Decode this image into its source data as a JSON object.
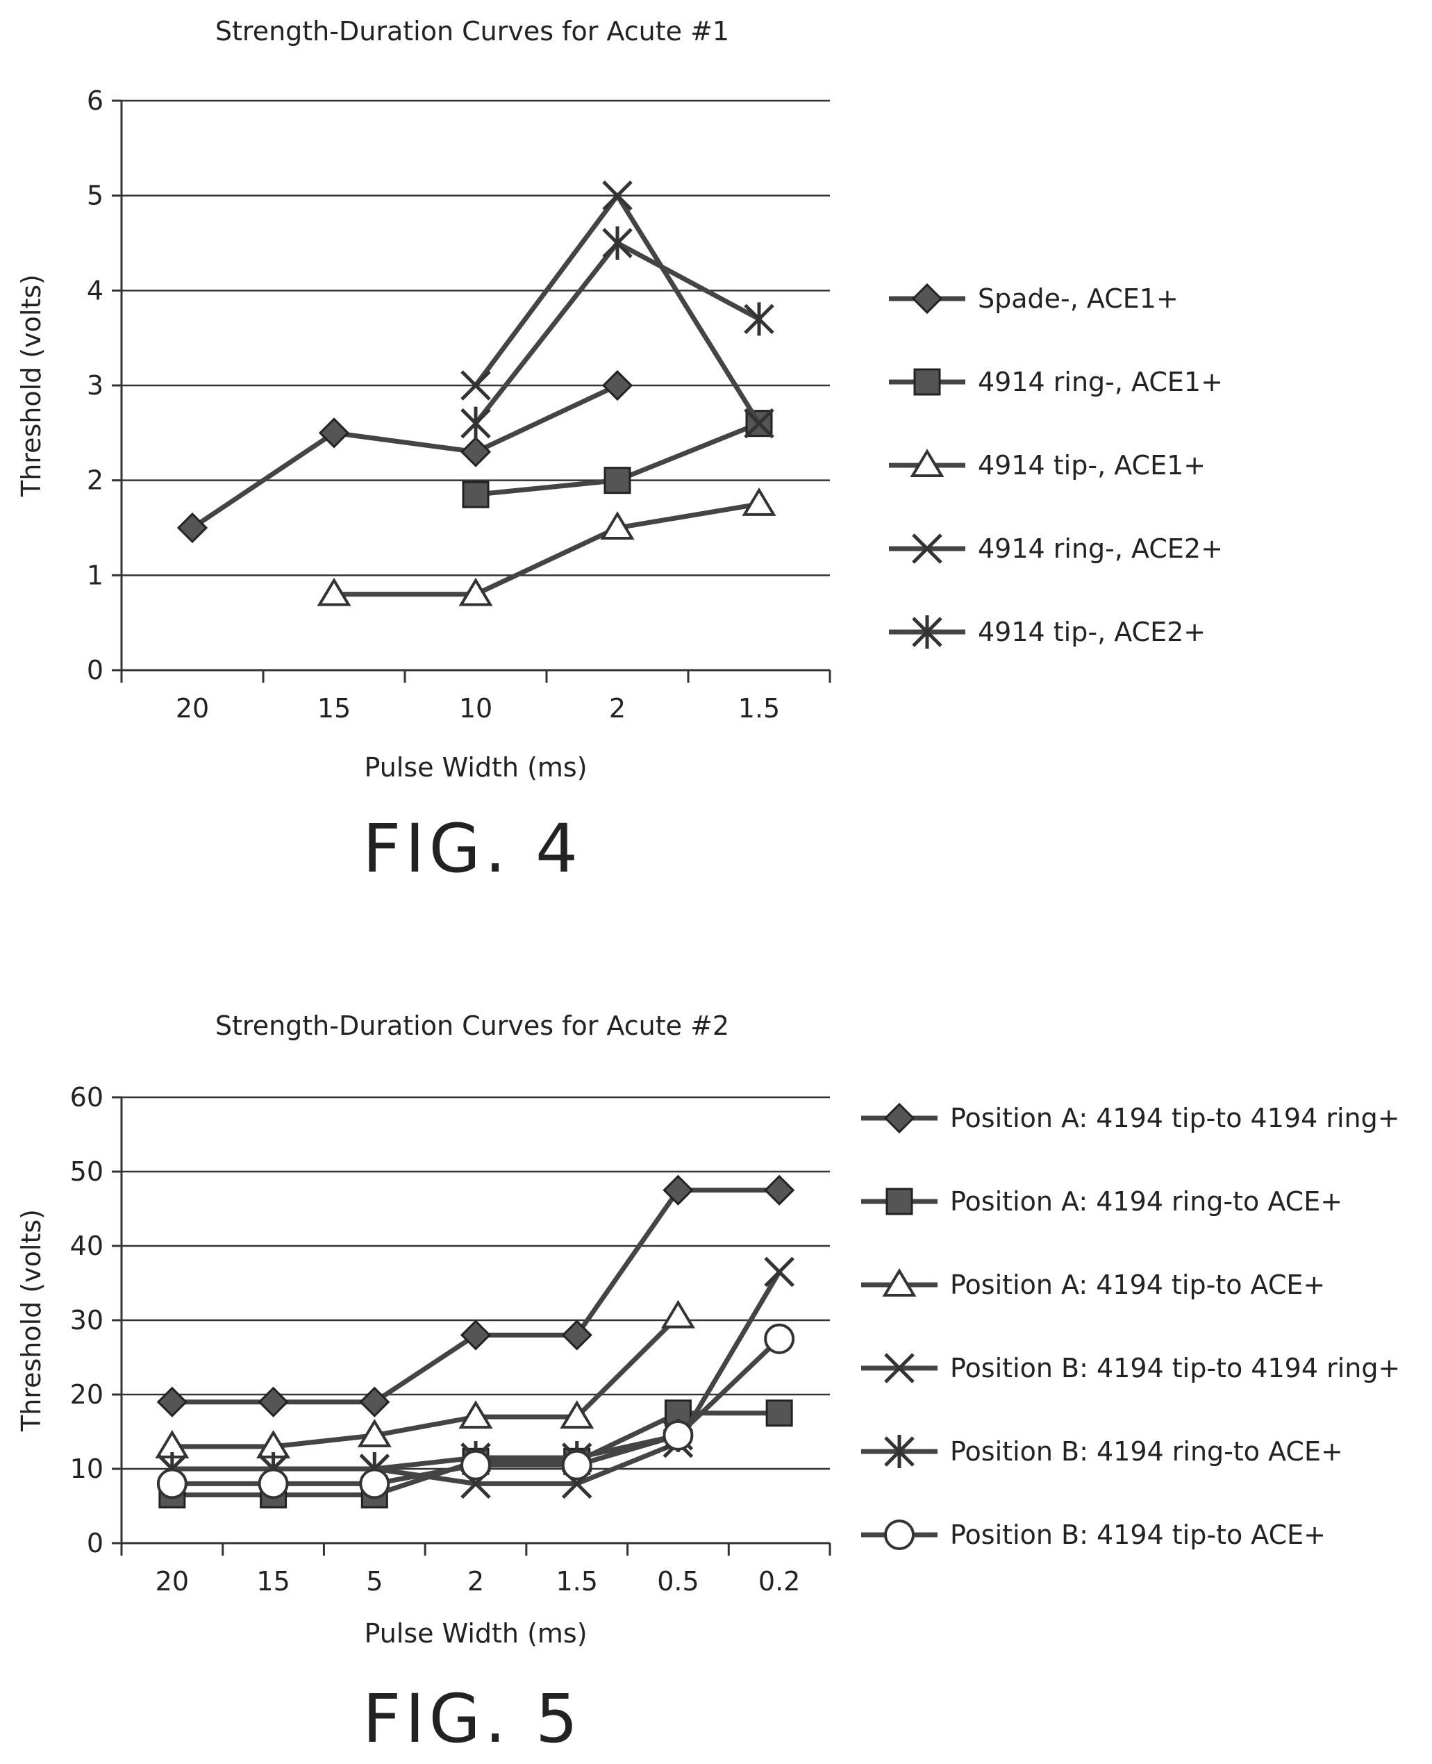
{
  "figures": [
    {
      "fig_label": "FIG. 4"
    },
    {
      "fig_label": "FIG. 5"
    }
  ],
  "chart_data": [
    {
      "type": "line",
      "title": "Strength-Duration Curves for Acute #1",
      "xlabel": "Pulse Width (ms)",
      "ylabel": "Threshold (volts)",
      "categories": [
        "20",
        "15",
        "10",
        "2",
        "1.5"
      ],
      "ylim": [
        0,
        6
      ],
      "yticks": [
        0,
        1,
        2,
        3,
        4,
        5,
        6
      ],
      "grid": true,
      "legend_position": "right",
      "series": [
        {
          "name": "Spade-, ACE1+",
          "marker": "diamond",
          "values": [
            1.5,
            2.5,
            2.3,
            3.0,
            null
          ]
        },
        {
          "name": "4914 ring-, ACE1+",
          "marker": "square",
          "values": [
            null,
            null,
            1.85,
            2.0,
            2.6
          ]
        },
        {
          "name": "4914 tip-, ACE1+",
          "marker": "triangle",
          "values": [
            null,
            0.8,
            0.8,
            1.5,
            1.75
          ]
        },
        {
          "name": "4914 ring-, ACE2+",
          "marker": "x",
          "values": [
            null,
            null,
            3.0,
            5.0,
            2.6
          ]
        },
        {
          "name": "4914 tip-, ACE2+",
          "marker": "asterisk",
          "values": [
            null,
            null,
            2.6,
            4.5,
            3.7
          ]
        }
      ]
    },
    {
      "type": "line",
      "title": "Strength-Duration Curves for Acute #2",
      "xlabel": "Pulse Width (ms)",
      "ylabel": "Threshold (volts)",
      "categories": [
        "20",
        "15",
        "5",
        "2",
        "1.5",
        "0.5",
        "0.2"
      ],
      "ylim": [
        0,
        60
      ],
      "yticks": [
        0,
        10,
        20,
        30,
        40,
        50,
        60
      ],
      "grid": true,
      "legend_position": "right",
      "series": [
        {
          "name": "Position A: 4194 tip-to 4194 ring+",
          "marker": "diamond",
          "values": [
            19,
            19,
            19,
            28,
            28,
            47.5,
            47.5
          ]
        },
        {
          "name": "Position A: 4194 ring-to ACE+",
          "marker": "square",
          "values": [
            6.5,
            6.5,
            6.5,
            11,
            11,
            17.5,
            17.5
          ]
        },
        {
          "name": "Position A: 4194 tip-to ACE+",
          "marker": "triangle",
          "values": [
            13,
            13,
            14.5,
            17,
            17,
            30.5,
            null
          ]
        },
        {
          "name": "Position B: 4194 tip-to 4194 ring+",
          "marker": "x",
          "values": [
            10,
            10,
            10,
            8,
            8,
            13.5,
            36.5
          ]
        },
        {
          "name": "Position B: 4194 ring-to ACE+",
          "marker": "asterisk",
          "values": [
            10,
            10,
            10,
            11.5,
            11.5,
            14.5,
            null
          ]
        },
        {
          "name": "Position B: 4194 tip-to ACE+",
          "marker": "circle",
          "values": [
            8,
            8,
            8,
            10.5,
            10.5,
            14.5,
            27.5
          ]
        }
      ]
    }
  ]
}
